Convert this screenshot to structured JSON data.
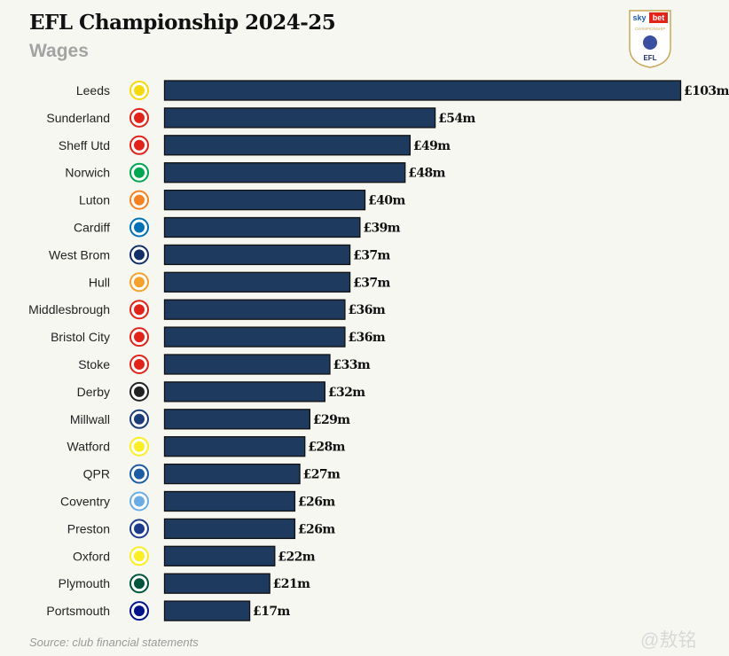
{
  "chart_data": {
    "type": "bar",
    "orientation": "horizontal",
    "title": "EFL Championship 2024-25",
    "subtitle": "Wages",
    "categories": [
      "Leeds",
      "Sunderland",
      "Sheff Utd",
      "Norwich",
      "Luton",
      "Cardiff",
      "West Brom",
      "Hull",
      "Middlesbrough",
      "Bristol City",
      "Stoke",
      "Derby",
      "Millwall",
      "Watford",
      "QPR",
      "Coventry",
      "Preston",
      "Oxford",
      "Plymouth",
      "Portsmouth"
    ],
    "values": [
      103,
      54,
      49,
      48,
      40,
      39,
      37,
      37,
      36,
      36,
      33,
      32,
      29,
      28,
      27,
      26,
      26,
      22,
      21,
      17
    ],
    "data_labels": [
      "£103m",
      "£54m",
      "£49m",
      "£48m",
      "£40m",
      "£39m",
      "£37m",
      "£37m",
      "£36m",
      "£36m",
      "£33m",
      "£32m",
      "£29m",
      "£28m",
      "£27m",
      "£26m",
      "£26m",
      "£22m",
      "£21m",
      "£17m"
    ],
    "unit": "£m",
    "xlim": [
      0,
      103
    ],
    "grid": false,
    "bar_color": "#1e3a5f",
    "crest_colors": [
      "#f5d90a",
      "#e2231a",
      "#e2231a",
      "#00a650",
      "#f58220",
      "#0070b5",
      "#122f67",
      "#f5a12c",
      "#e2231a",
      "#e2231a",
      "#e2231a",
      "#222222",
      "#1c3d7a",
      "#fbee23",
      "#1d5ba4",
      "#6cace4",
      "#1e3a8a",
      "#fbee23",
      "#00553a",
      "#001489"
    ],
    "source": "Source: club financial statements"
  },
  "logo": {
    "text_top": "sky bet",
    "text_mid": "CHAMPIONSHIP",
    "text_bottom": "EFL"
  },
  "watermark": "@敖铭"
}
